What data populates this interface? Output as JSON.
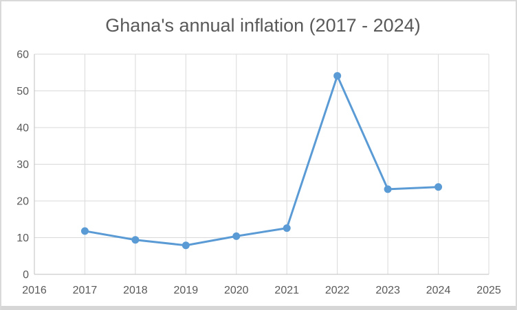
{
  "window": {
    "background": "#ffffff",
    "border_color": "#d9d9d9",
    "bottom_strip_color": "#d6d6d6"
  },
  "chart_data": {
    "type": "line",
    "title": "Ghana's annual inflation (2017 - 2024)",
    "x": [
      2017,
      2018,
      2019,
      2020,
      2021,
      2022,
      2023,
      2024
    ],
    "values": [
      11.8,
      9.4,
      7.9,
      10.4,
      12.6,
      54.1,
      23.2,
      23.8
    ],
    "xlabel": "",
    "ylabel": "",
    "xlim": [
      2016,
      2025
    ],
    "ylim": [
      0,
      60
    ],
    "x_ticks": [
      "2016",
      "2017",
      "2018",
      "2019",
      "2020",
      "2021",
      "2022",
      "2023",
      "2024",
      "2025"
    ],
    "y_ticks": [
      "0",
      "10",
      "20",
      "30",
      "40",
      "50",
      "60"
    ],
    "grid": true,
    "legend": false,
    "line_color": "#5b9bd5",
    "marker": "circle",
    "marker_color": "#5b9bd5",
    "gridline_color": "#d9d9d9",
    "axis_line_color": "#bfbfbf",
    "tick_text_color": "#595959",
    "title_color": "#595959"
  }
}
